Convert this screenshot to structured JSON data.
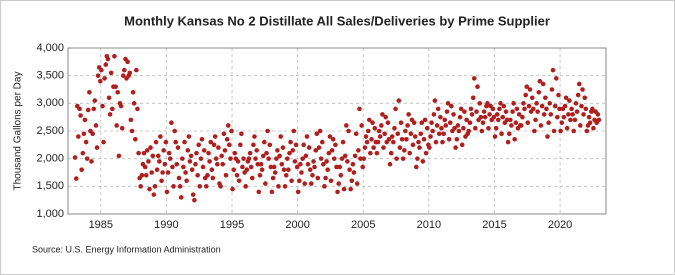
{
  "chart_data": {
    "type": "scatter",
    "title": "Monthly Kansas No 2 Distillate All Sales/Deliveries by Prime Supplier",
    "y_label": "Thousand Gallons per Day",
    "source": "Source: U.S. Energy Information Administration",
    "color": "#b01e1e",
    "grid": true,
    "xlim": [
      1982.5,
      2023.5
    ],
    "xticks": [
      1985,
      1990,
      1995,
      2000,
      2005,
      2010,
      2015,
      2020
    ],
    "ylim": [
      1000,
      4000
    ],
    "yticks": [
      {
        "value": 1000,
        "label": "1,000"
      },
      {
        "value": 1500,
        "label": "1,500"
      },
      {
        "value": 2000,
        "label": "2,000"
      },
      {
        "value": 2500,
        "label": "2,500"
      },
      {
        "value": 3000,
        "label": "3,000"
      },
      {
        "value": 3500,
        "label": "3,500"
      },
      {
        "value": 4000,
        "label": "4,000"
      }
    ],
    "x": [
      1983.04,
      1983.13,
      1983.21,
      1983.29,
      1983.38,
      1983.46,
      1983.54,
      1983.63,
      1983.71,
      1983.79,
      1983.88,
      1983.96,
      1984.04,
      1984.13,
      1984.21,
      1984.29,
      1984.38,
      1984.46,
      1984.54,
      1984.63,
      1984.71,
      1984.79,
      1984.88,
      1984.96,
      1985.04,
      1985.13,
      1985.21,
      1985.29,
      1985.38,
      1985.46,
      1985.54,
      1985.63,
      1985.71,
      1985.79,
      1985.88,
      1985.96,
      1986.04,
      1986.13,
      1986.21,
      1986.29,
      1986.38,
      1986.46,
      1986.54,
      1986.63,
      1986.71,
      1986.79,
      1986.88,
      1986.96,
      1987.04,
      1987.13,
      1987.21,
      1987.29,
      1987.38,
      1987.46,
      1987.54,
      1987.63,
      1987.71,
      1987.79,
      1987.88,
      1987.96,
      1988.04,
      1988.13,
      1988.21,
      1988.29,
      1988.38,
      1988.46,
      1988.54,
      1988.63,
      1988.71,
      1988.79,
      1988.88,
      1988.96,
      1989.04,
      1989.13,
      1989.21,
      1989.29,
      1989.38,
      1989.46,
      1989.54,
      1989.63,
      1989.71,
      1989.79,
      1989.88,
      1989.96,
      1990.04,
      1990.13,
      1990.21,
      1990.29,
      1990.38,
      1990.46,
      1990.54,
      1990.63,
      1990.71,
      1990.79,
      1990.88,
      1990.96,
      1991.04,
      1991.13,
      1991.21,
      1991.29,
      1991.38,
      1991.46,
      1991.54,
      1991.63,
      1991.71,
      1991.79,
      1991.88,
      1991.96,
      1992.04,
      1992.13,
      1992.21,
      1992.29,
      1992.38,
      1992.46,
      1992.54,
      1992.63,
      1992.71,
      1992.79,
      1992.88,
      1992.96,
      1993.04,
      1993.13,
      1993.21,
      1993.29,
      1993.38,
      1993.46,
      1993.54,
      1993.63,
      1993.71,
      1993.79,
      1993.88,
      1993.96,
      1994.04,
      1994.13,
      1994.21,
      1994.29,
      1994.38,
      1994.46,
      1994.54,
      1994.63,
      1994.71,
      1994.79,
      1994.88,
      1994.96,
      1995.04,
      1995.13,
      1995.21,
      1995.29,
      1995.38,
      1995.46,
      1995.54,
      1995.63,
      1995.71,
      1995.79,
      1995.88,
      1995.96,
      1996.04,
      1996.13,
      1996.21,
      1996.29,
      1996.38,
      1996.46,
      1996.54,
      1996.63,
      1996.71,
      1996.79,
      1996.88,
      1996.96,
      1997.04,
      1997.13,
      1997.21,
      1997.29,
      1997.38,
      1997.46,
      1997.54,
      1997.63,
      1997.71,
      1997.79,
      1997.88,
      1997.96,
      1998.04,
      1998.13,
      1998.21,
      1998.29,
      1998.38,
      1998.46,
      1998.54,
      1998.63,
      1998.71,
      1998.79,
      1998.88,
      1998.96,
      1999.04,
      1999.13,
      1999.21,
      1999.29,
      1999.38,
      1999.46,
      1999.54,
      1999.63,
      1999.71,
      1999.79,
      1999.88,
      1999.96,
      2000.04,
      2000.13,
      2000.21,
      2000.29,
      2000.38,
      2000.46,
      2000.54,
      2000.63,
      2000.71,
      2000.79,
      2000.88,
      2000.96,
      2001.04,
      2001.13,
      2001.21,
      2001.29,
      2001.38,
      2001.46,
      2001.54,
      2001.63,
      2001.71,
      2001.79,
      2001.88,
      2001.96,
      2002.04,
      2002.13,
      2002.21,
      2002.29,
      2002.38,
      2002.46,
      2002.54,
      2002.63,
      2002.71,
      2002.79,
      2002.88,
      2002.96,
      2003.04,
      2003.13,
      2003.21,
      2003.29,
      2003.38,
      2003.46,
      2003.54,
      2003.63,
      2003.71,
      2003.79,
      2003.88,
      2003.96,
      2004.04,
      2004.13,
      2004.21,
      2004.29,
      2004.38,
      2004.46,
      2004.54,
      2004.63,
      2004.71,
      2004.79,
      2004.88,
      2004.96,
      2005.04,
      2005.13,
      2005.21,
      2005.29,
      2005.38,
      2005.46,
      2005.54,
      2005.63,
      2005.71,
      2005.79,
      2005.88,
      2005.96,
      2006.04,
      2006.13,
      2006.21,
      2006.29,
      2006.38,
      2006.46,
      2006.54,
      2006.63,
      2006.71,
      2006.79,
      2006.88,
      2006.96,
      2007.04,
      2007.13,
      2007.21,
      2007.29,
      2007.38,
      2007.46,
      2007.54,
      2007.63,
      2007.71,
      2007.79,
      2007.88,
      2007.96,
      2008.04,
      2008.13,
      2008.21,
      2008.29,
      2008.38,
      2008.46,
      2008.54,
      2008.63,
      2008.71,
      2008.79,
      2008.88,
      2008.96,
      2009.04,
      2009.13,
      2009.21,
      2009.29,
      2009.38,
      2009.46,
      2009.54,
      2009.63,
      2009.71,
      2009.79,
      2009.88,
      2009.96,
      2010.04,
      2010.13,
      2010.21,
      2010.29,
      2010.38,
      2010.46,
      2010.54,
      2010.63,
      2010.71,
      2010.79,
      2010.88,
      2010.96,
      2011.04,
      2011.13,
      2011.21,
      2011.29,
      2011.38,
      2011.46,
      2011.54,
      2011.63,
      2011.71,
      2011.79,
      2011.88,
      2011.96,
      2012.04,
      2012.13,
      2012.21,
      2012.29,
      2012.38,
      2012.46,
      2012.54,
      2012.63,
      2012.71,
      2012.79,
      2012.88,
      2012.96,
      2013.04,
      2013.13,
      2013.21,
      2013.29,
      2013.38,
      2013.46,
      2013.54,
      2013.63,
      2013.71,
      2013.79,
      2013.88,
      2013.96,
      2014.04,
      2014.13,
      2014.21,
      2014.29,
      2014.38,
      2014.46,
      2014.54,
      2014.63,
      2014.71,
      2014.79,
      2014.88,
      2014.96,
      2015.04,
      2015.13,
      2015.21,
      2015.29,
      2015.38,
      2015.46,
      2015.54,
      2015.63,
      2015.71,
      2015.79,
      2015.88,
      2015.96,
      2016.04,
      2016.13,
      2016.21,
      2016.29,
      2016.38,
      2016.46,
      2016.54,
      2016.63,
      2016.71,
      2016.79,
      2016.88,
      2016.96,
      2017.04,
      2017.13,
      2017.21,
      2017.29,
      2017.38,
      2017.46,
      2017.54,
      2017.63,
      2017.71,
      2017.79,
      2017.88,
      2017.96,
      2018.04,
      2018.13,
      2018.21,
      2018.29,
      2018.38,
      2018.46,
      2018.54,
      2018.63,
      2018.71,
      2018.79,
      2018.88,
      2018.96,
      2019.04,
      2019.13,
      2019.21,
      2019.29,
      2019.38,
      2019.46,
      2019.54,
      2019.63,
      2019.71,
      2019.79,
      2019.88,
      2019.96,
      2020.04,
      2020.13,
      2020.21,
      2020.29,
      2020.38,
      2020.46,
      2020.54,
      2020.63,
      2020.71,
      2020.79,
      2020.88,
      2020.96,
      2021.04,
      2021.13,
      2021.21,
      2021.29,
      2021.38,
      2021.46,
      2021.54,
      2021.63,
      2021.71,
      2021.79,
      2021.88,
      2021.96,
      2022.04,
      2022.13,
      2022.21,
      2022.29,
      2022.38,
      2022.46,
      2022.54,
      2022.63,
      2022.71,
      2022.79,
      2022.88,
      2022.96
    ],
    "values": [
      2020,
      1640,
      2950,
      2400,
      2900,
      2780,
      1800,
      2100,
      2450,
      2700,
      2300,
      2000,
      2880,
      3200,
      2500,
      1950,
      2450,
      2900,
      3050,
      2600,
      2200,
      3500,
      3650,
      3400,
      3600,
      2950,
      2300,
      3450,
      3700,
      3850,
      3800,
      3100,
      2800,
      3550,
      2900,
      3300,
      3850,
      3300,
      2600,
      3200,
      2050,
      3000,
      2950,
      2550,
      3500,
      3600,
      3800,
      3450,
      3750,
      3500,
      3550,
      2700,
      2500,
      3200,
      3000,
      2350,
      3600,
      2900,
      2100,
      1650,
      1500,
      1700,
      1900,
      2100,
      1850,
      1700,
      2150,
      1950,
      1450,
      2200,
      1750,
      2050,
      1350,
      1500,
      2300,
      1800,
      2050,
      1950,
      2400,
      1600,
      1750,
      2150,
      1900,
      2300,
      1400,
      1750,
      2100,
      2000,
      2650,
      1850,
      1500,
      2500,
      2300,
      1900,
      2200,
      1650,
      1500,
      1300,
      2000,
      1850,
      2300,
      1750,
      1600,
      2150,
      2400,
      1950,
      2050,
      1800,
      1350,
      1250,
      1900,
      2100,
      1700,
      2250,
      1500,
      2000,
      2350,
      1850,
      2150,
      1650,
      1500,
      1700,
      2100,
      1950,
      2300,
      1800,
      1650,
      2250,
      2400,
      2000,
      1900,
      2200,
      1550,
      1500,
      2050,
      1900,
      2450,
      2150,
      1700,
      2350,
      2600,
      2250,
      2000,
      2500,
      1450,
      1800,
      2100,
      2000,
      1700,
      1950,
      1600,
      2250,
      2450,
      1850,
      2000,
      1750,
      1500,
      1800,
      1950,
      2000,
      2100,
      1850,
      1650,
      2250,
      2400,
      2000,
      2150,
      1900,
      1400,
      1700,
      1900,
      1800,
      2050,
      2300,
      1550,
      2100,
      2500,
      2000,
      2250,
      1850,
      1400,
      1650,
      1850,
      1750,
      2000,
      2150,
      1500,
      2050,
      2400,
      1900,
      2200,
      1800,
      1500,
      1700,
      2000,
      1800,
      2100,
      2300,
      1600,
      2150,
      2500,
      1950,
      2250,
      1850,
      1400,
      1600,
      1900,
      1750,
      2000,
      2250,
      1550,
      2050,
      2400,
      1900,
      2200,
      1800,
      1550,
      1700,
      1950,
      1850,
      2150,
      2450,
      1650,
      2200,
      2500,
      2000,
      2300,
      1900,
      1500,
      1650,
      1950,
      1800,
      2100,
      2400,
      1600,
      2150,
      2350,
      2000,
      2250,
      1850,
      1400,
      1550,
      1850,
      1700,
      2000,
      2300,
      1450,
      2050,
      2600,
      1950,
      2500,
      1800,
      1450,
      1600,
      1900,
      1750,
      2050,
      2450,
      1550,
      2150,
      2900,
      2000,
      2600,
      1850,
      2000,
      2200,
      2400,
      2300,
      2500,
      2700,
      2100,
      2350,
      2650,
      2200,
      2550,
      2300,
      2100,
      2300,
      2500,
      2400,
      2600,
      2800,
      2200,
      2450,
      2750,
      2300,
      2650,
      2350,
      1900,
      2100,
      2400,
      2300,
      2550,
      2900,
      2000,
      2450,
      3050,
      2200,
      2650,
      2350,
      2000,
      2150,
      2500,
      2350,
      2600,
      2800,
      2100,
      2450,
      2700,
      2250,
      2650,
      2400,
      1850,
      2000,
      2300,
      2200,
      2450,
      2650,
      1950,
      2350,
      2700,
      2100,
      2550,
      2250,
      2200,
      2400,
      2650,
      2500,
      2800,
      3050,
      2300,
      2600,
      2900,
      2450,
      2750,
      2550,
      2300,
      2450,
      2700,
      2600,
      2850,
      3000,
      2350,
      2650,
      2950,
      2500,
      2800,
      2550,
      2200,
      2350,
      2600,
      2500,
      2750,
      2900,
      2250,
      2550,
      2850,
      2400,
      2700,
      2450,
      2500,
      2650,
      2900,
      2800,
      3100,
      3450,
      2550,
      2850,
      3300,
      2700,
      3000,
      2750,
      2500,
      2650,
      2850,
      2750,
      2950,
      3000,
      2550,
      2800,
      2950,
      2700,
      2900,
      2750,
      2400,
      2550,
      2800,
      2700,
      2900,
      3000,
      2450,
      2750,
      2950,
      2650,
      2850,
      2700,
      2300,
      2450,
      2700,
      2600,
      2850,
      3000,
      2350,
      2650,
      2900,
      2550,
      2800,
      2600,
      2600,
      2750,
      3000,
      2900,
      3150,
      3300,
      2650,
      2950,
      3250,
      2850,
      3100,
      2900,
      2500,
      2700,
      3000,
      2850,
      3200,
      3400,
      2600,
      2950,
      3350,
      2800,
      3100,
      2900,
      2400,
      2650,
      3000,
      2800,
      3250,
      3600,
      2500,
      2950,
      3450,
      2750,
      3150,
      2900,
      2500,
      2650,
      2900,
      2750,
      2950,
      3100,
      2550,
      2800,
      3050,
      2700,
      2900,
      2800,
      2500,
      2700,
      3000,
      2850,
      3150,
      3350,
      2600,
      2950,
      3250,
      2800,
      3100,
      2900,
      2500,
      2600,
      2750,
      2650,
      2850,
      2900,
      2550,
      2700,
      2850,
      2650,
      2800,
      2700
    ]
  }
}
